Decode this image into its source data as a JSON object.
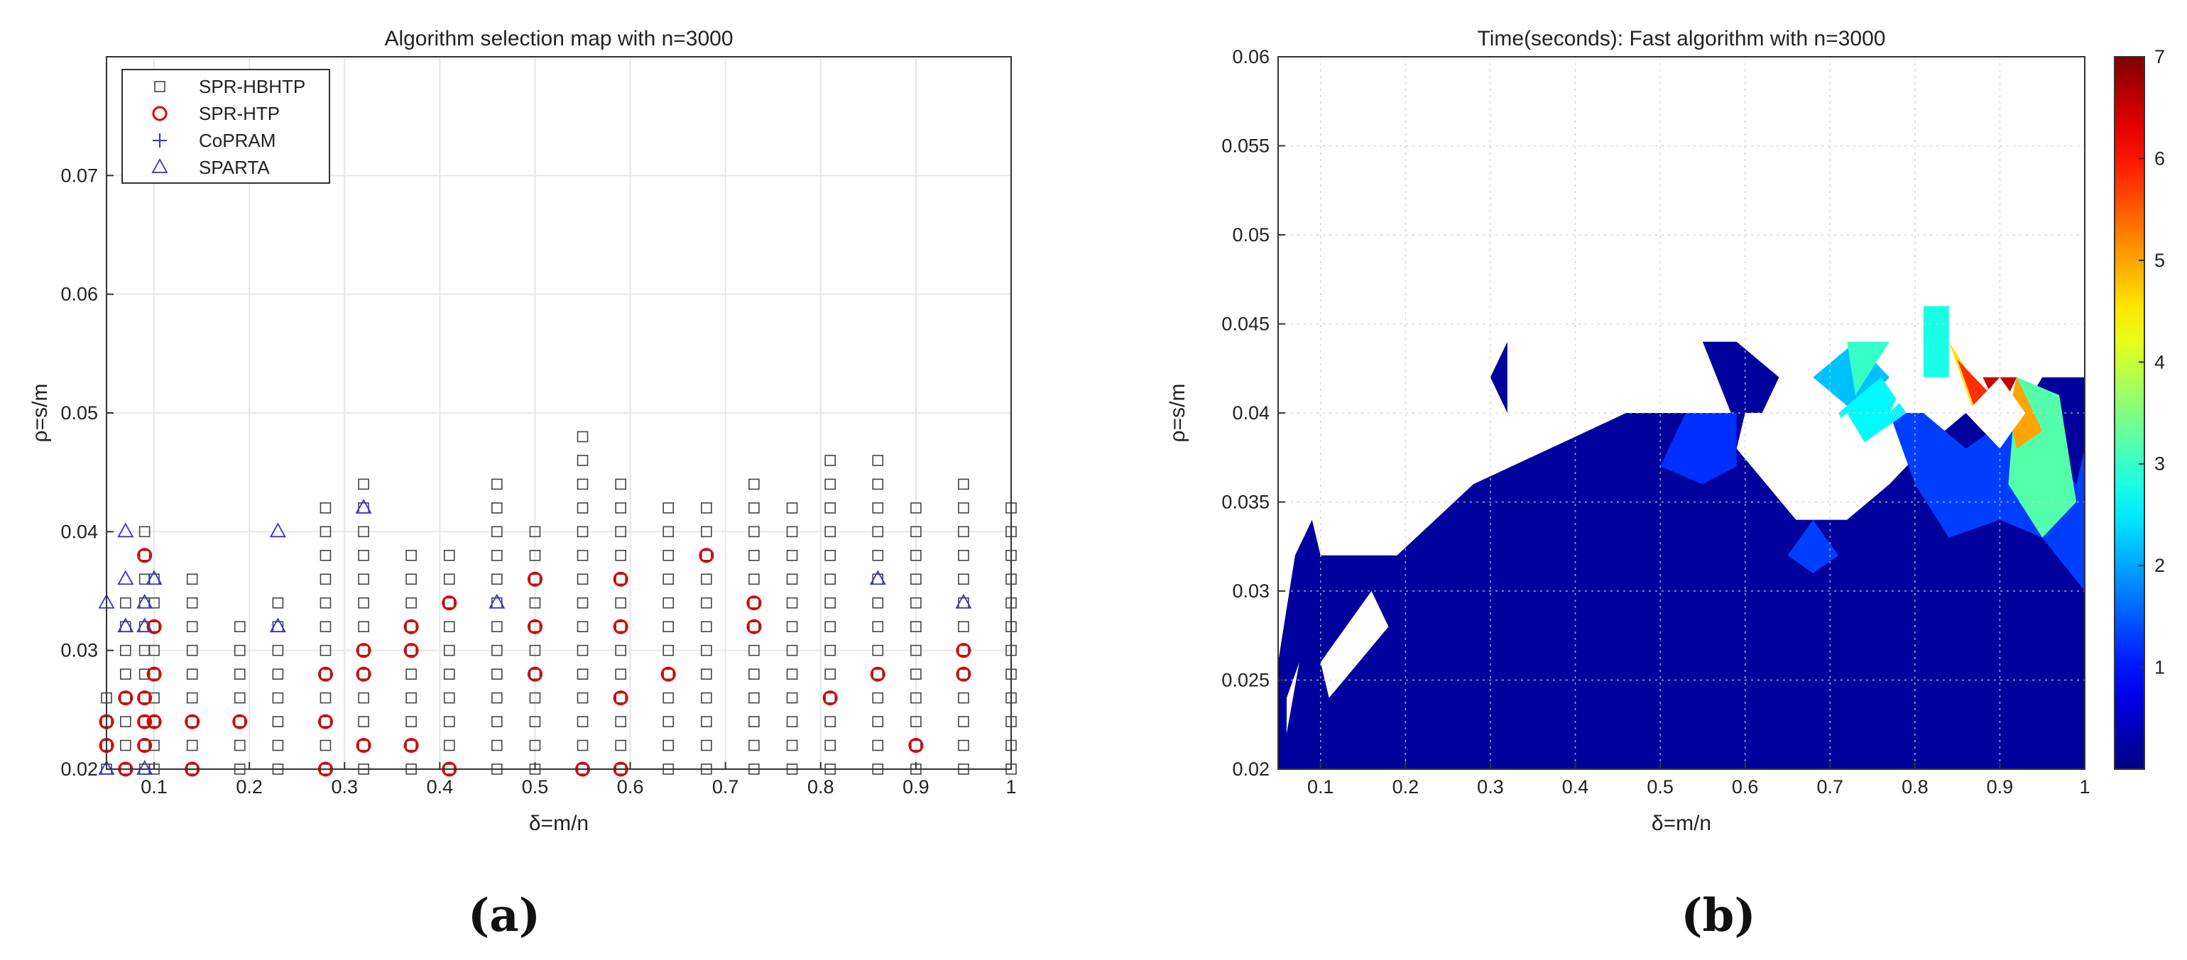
{
  "panel_labels": [
    "(a)",
    "(b)"
  ],
  "chart_data": [
    {
      "type": "scatter",
      "title": "Algorithm selection map with n=3000",
      "xlabel": "δ=m/n",
      "ylabel": "ρ=s/m",
      "xlim": [
        0.05,
        1.0
      ],
      "ylim": [
        0.02,
        0.08
      ],
      "xticks": [
        0.1,
        0.2,
        0.3,
        0.4,
        0.5,
        0.6,
        0.7,
        0.8,
        0.9,
        1
      ],
      "xtick_labels": [
        "0.1",
        "0.2",
        "0.3",
        "0.4",
        "0.5",
        "0.6",
        "0.7",
        "0.8",
        "0.9",
        "1"
      ],
      "yticks": [
        0.02,
        0.03,
        0.04,
        0.05,
        0.06,
        0.07
      ],
      "ytick_labels": [
        "0.02",
        "0.03",
        "0.04",
        "0.05",
        "0.06",
        "0.07"
      ],
      "grid": true,
      "legend_position": "top-left",
      "series": [
        {
          "name": "SPR-HBHTP",
          "marker": "square",
          "color": "#444444",
          "x": [
            0.05,
            0.07,
            0.09,
            0.1,
            0.14,
            0.19,
            0.23,
            0.28,
            0.32,
            0.37,
            0.41,
            0.46,
            0.5,
            0.55,
            0.59,
            0.64,
            0.68,
            0.73,
            0.77,
            0.81,
            0.86,
            0.9,
            0.95,
            1.0
          ],
          "ymax": [
            0.026,
            0.034,
            0.04,
            0.036,
            0.036,
            0.032,
            0.034,
            0.042,
            0.044,
            0.038,
            0.038,
            0.044,
            0.04,
            0.048,
            0.044,
            0.042,
            0.042,
            0.044,
            0.042,
            0.046,
            0.046,
            0.042,
            0.044,
            0.042
          ],
          "step": 0.002,
          "note_skip": "grid markers at every 0.002 step from 0.02 to ymax"
        },
        {
          "name": "SPR-HTP",
          "marker": "circle",
          "color": "#e00000",
          "points": [
            [
              0.05,
              0.024
            ],
            [
              0.05,
              0.022
            ],
            [
              0.07,
              0.02
            ],
            [
              0.07,
              0.026
            ],
            [
              0.09,
              0.038
            ],
            [
              0.09,
              0.026
            ],
            [
              0.09,
              0.024
            ],
            [
              0.09,
              0.022
            ],
            [
              0.1,
              0.032
            ],
            [
              0.1,
              0.028
            ],
            [
              0.1,
              0.024
            ],
            [
              0.14,
              0.02
            ],
            [
              0.14,
              0.024
            ],
            [
              0.19,
              0.024
            ],
            [
              0.28,
              0.028
            ],
            [
              0.28,
              0.024
            ],
            [
              0.28,
              0.02
            ],
            [
              0.32,
              0.03
            ],
            [
              0.32,
              0.028
            ],
            [
              0.32,
              0.022
            ],
            [
              0.37,
              0.032
            ],
            [
              0.37,
              0.03
            ],
            [
              0.37,
              0.022
            ],
            [
              0.41,
              0.034
            ],
            [
              0.41,
              0.02
            ],
            [
              0.5,
              0.036
            ],
            [
              0.5,
              0.032
            ],
            [
              0.5,
              0.028
            ],
            [
              0.55,
              0.02
            ],
            [
              0.59,
              0.036
            ],
            [
              0.59,
              0.032
            ],
            [
              0.59,
              0.026
            ],
            [
              0.59,
              0.02
            ],
            [
              0.64,
              0.028
            ],
            [
              0.68,
              0.038
            ],
            [
              0.73,
              0.034
            ],
            [
              0.73,
              0.032
            ],
            [
              0.81,
              0.026
            ],
            [
              0.86,
              0.028
            ],
            [
              0.9,
              0.022
            ],
            [
              0.95,
              0.03
            ],
            [
              0.95,
              0.028
            ]
          ]
        },
        {
          "name": "CoPRAM",
          "marker": "plus",
          "color": "#3333cc",
          "points": []
        },
        {
          "name": "SPARTA",
          "marker": "triangle",
          "color": "#3333cc",
          "points": [
            [
              0.05,
              0.034
            ],
            [
              0.05,
              0.02
            ],
            [
              0.07,
              0.04
            ],
            [
              0.07,
              0.036
            ],
            [
              0.07,
              0.032
            ],
            [
              0.09,
              0.034
            ],
            [
              0.09,
              0.032
            ],
            [
              0.09,
              0.02
            ],
            [
              0.1,
              0.036
            ],
            [
              0.23,
              0.04
            ],
            [
              0.23,
              0.032
            ],
            [
              0.32,
              0.042
            ],
            [
              0.46,
              0.034
            ],
            [
              0.86,
              0.036
            ],
            [
              0.95,
              0.034
            ]
          ]
        }
      ]
    },
    {
      "type": "heatmap",
      "title": "Time(seconds): Fast algorithm with n=3000",
      "xlabel": "δ=m/n",
      "ylabel": "ρ=s/m",
      "xlim": [
        0.05,
        1.0
      ],
      "ylim": [
        0.02,
        0.06
      ],
      "xticks": [
        0.1,
        0.2,
        0.3,
        0.4,
        0.5,
        0.6,
        0.7,
        0.8,
        0.9,
        1
      ],
      "xtick_labels": [
        "0.1",
        "0.2",
        "0.3",
        "0.4",
        "0.5",
        "0.6",
        "0.7",
        "0.8",
        "0.9",
        "1"
      ],
      "yticks": [
        0.02,
        0.025,
        0.03,
        0.035,
        0.04,
        0.045,
        0.05,
        0.055,
        0.06
      ],
      "ytick_labels": [
        "0.02",
        "0.025",
        "0.03",
        "0.035",
        "0.04",
        "0.045",
        "0.05",
        "0.055",
        "0.06"
      ],
      "grid": true,
      "colorbar": {
        "range": [
          0,
          7
        ],
        "ticks": [
          1,
          2,
          3,
          4,
          5,
          6,
          7
        ],
        "tick_labels": [
          "1",
          "2",
          "3",
          "4",
          "5",
          "6",
          "7"
        ],
        "colormap": "jet"
      },
      "regions": [
        {
          "level": 0.2,
          "points": [
            [
              0.05,
              0.02
            ],
            [
              1.0,
              0.02
            ],
            [
              1.0,
              0.042
            ],
            [
              0.95,
              0.042
            ],
            [
              0.9,
              0.038
            ],
            [
              0.86,
              0.04
            ],
            [
              0.81,
              0.038
            ],
            [
              0.77,
              0.036
            ],
            [
              0.68,
              0.034
            ],
            [
              0.59,
              0.04
            ],
            [
              0.55,
              0.04
            ],
            [
              0.46,
              0.04
            ],
            [
              0.37,
              0.038
            ],
            [
              0.28,
              0.036
            ],
            [
              0.19,
              0.032
            ],
            [
              0.1,
              0.032
            ],
            [
              0.09,
              0.034
            ],
            [
              0.07,
              0.032
            ],
            [
              0.05,
              0.026
            ]
          ]
        },
        {
          "level": 0.2,
          "points": [
            [
              0.3,
              0.042
            ],
            [
              0.32,
              0.044
            ],
            [
              0.32,
              0.04
            ]
          ]
        },
        {
          "level": 0.2,
          "points": [
            [
              0.55,
              0.044
            ],
            [
              0.59,
              0.044
            ],
            [
              0.64,
              0.042
            ],
            [
              0.6,
              0.038
            ]
          ]
        },
        {
          "level": 1.2,
          "points": [
            [
              0.5,
              0.037
            ],
            [
              0.53,
              0.04
            ],
            [
              0.59,
              0.04
            ],
            [
              0.59,
              0.037
            ],
            [
              0.55,
              0.036
            ]
          ]
        },
        {
          "level": 1.3,
          "points": [
            [
              0.77,
              0.04
            ],
            [
              0.81,
              0.04
            ],
            [
              0.86,
              0.038
            ],
            [
              0.92,
              0.04
            ],
            [
              0.99,
              0.036
            ],
            [
              1.0,
              0.038
            ],
            [
              1.0,
              0.03
            ],
            [
              0.95,
              0.033
            ],
            [
              0.9,
              0.034
            ],
            [
              0.84,
              0.033
            ],
            [
              0.8,
              0.036
            ]
          ]
        },
        {
          "level": 1.3,
          "points": [
            [
              0.65,
              0.032
            ],
            [
              0.68,
              0.034
            ],
            [
              0.71,
              0.032
            ],
            [
              0.68,
              0.031
            ]
          ]
        },
        {
          "level": 2.2,
          "points": [
            [
              0.68,
              0.042
            ],
            [
              0.73,
              0.044
            ],
            [
              0.77,
              0.042
            ],
            [
              0.73,
              0.04
            ]
          ]
        },
        {
          "level": 2.6,
          "points": [
            [
              0.71,
              0.04
            ],
            [
              0.76,
              0.042
            ],
            [
              0.79,
              0.04
            ],
            [
              0.73,
              0.038
            ]
          ]
        },
        {
          "level": 3.0,
          "points": [
            [
              0.72,
              0.044
            ],
            [
              0.77,
              0.044
            ],
            [
              0.73,
              0.041
            ]
          ]
        },
        {
          "level": 3.2,
          "points": [
            [
              0.92,
              0.042
            ],
            [
              0.97,
              0.041
            ],
            [
              0.99,
              0.035
            ],
            [
              0.95,
              0.033
            ],
            [
              0.91,
              0.036
            ]
          ]
        },
        {
          "level": 2.8,
          "points": [
            [
              0.81,
              0.046
            ],
            [
              0.84,
              0.046
            ],
            [
              0.84,
              0.042
            ],
            [
              0.81,
              0.042
            ]
          ]
        },
        {
          "level": 3.2,
          "points": [
            [
              0.94,
              0.036
            ],
            [
              0.96,
              0.037
            ],
            [
              0.96,
              0.035
            ]
          ]
        },
        {
          "level": 4.6,
          "points": [
            [
              0.84,
              0.044
            ],
            [
              0.88,
              0.041
            ],
            [
              0.9,
              0.038
            ],
            [
              0.87,
              0.04
            ]
          ]
        },
        {
          "level": 5.8,
          "points": [
            [
              0.85,
              0.043
            ],
            [
              0.89,
              0.041
            ],
            [
              0.88,
              0.039
            ]
          ]
        },
        {
          "level": 6.5,
          "points": [
            [
              0.88,
              0.042
            ],
            [
              0.92,
              0.042
            ],
            [
              0.9,
              0.04
            ]
          ]
        },
        {
          "level": 5.0,
          "points": [
            [
              0.92,
              0.042
            ],
            [
              0.95,
              0.039
            ],
            [
              0.92,
              0.038
            ],
            [
              0.91,
              0.04
            ]
          ]
        }
      ],
      "holes": [
        [
          [
            0.06,
            0.024
          ],
          [
            0.075,
            0.026
          ],
          [
            0.06,
            0.022
          ]
        ],
        [
          [
            0.1,
            0.026
          ],
          [
            0.16,
            0.03
          ],
          [
            0.18,
            0.028
          ],
          [
            0.11,
            0.024
          ]
        ],
        [
          [
            0.59,
            0.038
          ],
          [
            0.66,
            0.034
          ],
          [
            0.72,
            0.034
          ],
          [
            0.77,
            0.036
          ],
          [
            0.72,
            0.04
          ],
          [
            0.67,
            0.038
          ],
          [
            0.64,
            0.04
          ],
          [
            0.6,
            0.04
          ]
        ],
        [
          [
            0.86,
            0.04
          ],
          [
            0.9,
            0.042
          ],
          [
            0.93,
            0.04
          ],
          [
            0.9,
            0.038
          ]
        ],
        [
          [
            0.77,
            0.04
          ],
          [
            0.81,
            0.042
          ],
          [
            0.81,
            0.044
          ],
          [
            0.79,
            0.042
          ]
        ]
      ]
    }
  ]
}
